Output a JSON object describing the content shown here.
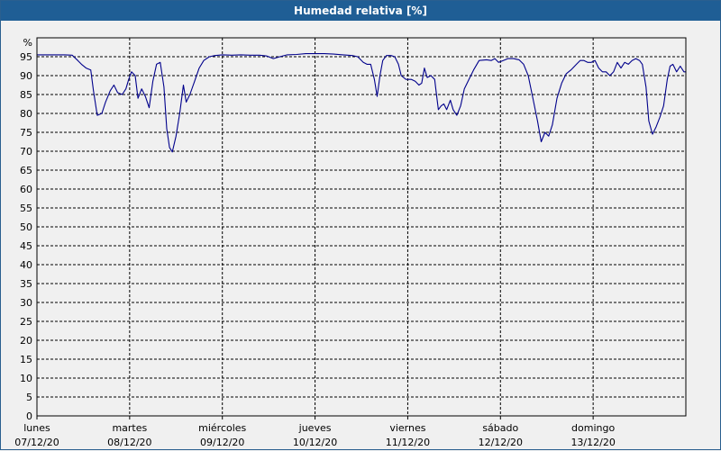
{
  "window": {
    "title": "Humedad relativa [%]"
  },
  "chart_data": {
    "type": "line",
    "title": "Humedad relativa [%]",
    "ylabel": "%",
    "ylim": [
      0,
      100
    ],
    "yticks": [
      0,
      5,
      10,
      15,
      20,
      25,
      30,
      35,
      40,
      45,
      50,
      55,
      60,
      65,
      70,
      75,
      80,
      85,
      90,
      95
    ],
    "xlim": [
      0,
      7
    ],
    "x_unit": "days since 07/12/20 00:00",
    "grid": true,
    "legend": "none",
    "line_color": "#00008b",
    "day_ticks": [
      {
        "day": "lunes",
        "date": "07/12/20"
      },
      {
        "day": "martes",
        "date": "08/12/20"
      },
      {
        "day": "miércoles",
        "date": "09/12/20"
      },
      {
        "day": "jueves",
        "date": "10/12/20"
      },
      {
        "day": "viernes",
        "date": "11/12/20"
      },
      {
        "day": "sábado",
        "date": "12/12/20"
      },
      {
        "day": "domingo",
        "date": "13/12/20"
      }
    ],
    "series": [
      {
        "name": "Humedad relativa",
        "points": [
          [
            0.0,
            95.5
          ],
          [
            0.1,
            95.5
          ],
          [
            0.2,
            95.5
          ],
          [
            0.3,
            95.5
          ],
          [
            0.38,
            95.4
          ],
          [
            0.44,
            94.0
          ],
          [
            0.48,
            93.0
          ],
          [
            0.53,
            92.0
          ],
          [
            0.58,
            91.5
          ],
          [
            0.61,
            86.0
          ],
          [
            0.65,
            79.5
          ],
          [
            0.7,
            80.0
          ],
          [
            0.74,
            83.0
          ],
          [
            0.79,
            86.0
          ],
          [
            0.83,
            87.5
          ],
          [
            0.87,
            85.5
          ],
          [
            0.92,
            85.0
          ],
          [
            0.96,
            86.5
          ],
          [
            0.99,
            89.0
          ],
          [
            1.02,
            91.0
          ],
          [
            1.06,
            90.0
          ],
          [
            1.09,
            84.0
          ],
          [
            1.13,
            86.5
          ],
          [
            1.17,
            84.5
          ],
          [
            1.21,
            81.5
          ],
          [
            1.25,
            88.5
          ],
          [
            1.29,
            93.0
          ],
          [
            1.33,
            93.5
          ],
          [
            1.37,
            87.0
          ],
          [
            1.4,
            76.0
          ],
          [
            1.43,
            71.0
          ],
          [
            1.46,
            69.8
          ],
          [
            1.5,
            74.0
          ],
          [
            1.54,
            80.0
          ],
          [
            1.58,
            87.5
          ],
          [
            1.61,
            83.0
          ],
          [
            1.65,
            85.0
          ],
          [
            1.7,
            88.5
          ],
          [
            1.75,
            92.0
          ],
          [
            1.8,
            94.0
          ],
          [
            1.86,
            95.0
          ],
          [
            1.92,
            95.3
          ],
          [
            2.0,
            95.5
          ],
          [
            2.1,
            95.4
          ],
          [
            2.2,
            95.5
          ],
          [
            2.3,
            95.4
          ],
          [
            2.4,
            95.4
          ],
          [
            2.48,
            95.2
          ],
          [
            2.55,
            94.5
          ],
          [
            2.62,
            95.0
          ],
          [
            2.7,
            95.5
          ],
          [
            2.8,
            95.6
          ],
          [
            2.9,
            95.8
          ],
          [
            3.0,
            95.8
          ],
          [
            3.1,
            95.8
          ],
          [
            3.2,
            95.7
          ],
          [
            3.3,
            95.5
          ],
          [
            3.4,
            95.3
          ],
          [
            3.46,
            95.0
          ],
          [
            3.52,
            93.5
          ],
          [
            3.56,
            93.0
          ],
          [
            3.6,
            93.0
          ],
          [
            3.64,
            89.0
          ],
          [
            3.67,
            84.5
          ],
          [
            3.7,
            90.0
          ],
          [
            3.73,
            94.0
          ],
          [
            3.77,
            95.3
          ],
          [
            3.82,
            95.3
          ],
          [
            3.86,
            95.0
          ],
          [
            3.9,
            93.0
          ],
          [
            3.93,
            90.0
          ],
          [
            3.98,
            89.0
          ],
          [
            4.04,
            89.0
          ],
          [
            4.08,
            88.5
          ],
          [
            4.12,
            87.5
          ],
          [
            4.15,
            88.0
          ],
          [
            4.18,
            92.0
          ],
          [
            4.21,
            89.5
          ],
          [
            4.25,
            90.0
          ],
          [
            4.29,
            89.0
          ],
          [
            4.31,
            85.0
          ],
          [
            4.33,
            81.0
          ],
          [
            4.36,
            82.0
          ],
          [
            4.39,
            82.5
          ],
          [
            4.42,
            81.0
          ],
          [
            4.46,
            83.5
          ],
          [
            4.49,
            81.0
          ],
          [
            4.53,
            79.5
          ],
          [
            4.57,
            82.0
          ],
          [
            4.61,
            86.5
          ],
          [
            4.66,
            89.0
          ],
          [
            4.71,
            91.5
          ],
          [
            4.77,
            94.0
          ],
          [
            4.85,
            94.2
          ],
          [
            4.9,
            94.0
          ],
          [
            4.94,
            94.5
          ],
          [
            4.98,
            93.5
          ],
          [
            5.03,
            94.0
          ],
          [
            5.08,
            94.5
          ],
          [
            5.14,
            94.5
          ],
          [
            5.2,
            94.2
          ],
          [
            5.25,
            93.0
          ],
          [
            5.3,
            90.0
          ],
          [
            5.35,
            84.0
          ],
          [
            5.4,
            78.0
          ],
          [
            5.44,
            72.5
          ],
          [
            5.48,
            75.0
          ],
          [
            5.52,
            74.0
          ],
          [
            5.56,
            77.0
          ],
          [
            5.61,
            84.0
          ],
          [
            5.66,
            88.0
          ],
          [
            5.71,
            90.5
          ],
          [
            5.76,
            91.5
          ],
          [
            5.82,
            93.0
          ],
          [
            5.86,
            94.0
          ],
          [
            5.9,
            94.0
          ],
          [
            5.94,
            93.5
          ],
          [
            5.98,
            93.5
          ],
          [
            6.02,
            94.0
          ],
          [
            6.06,
            92.0
          ],
          [
            6.1,
            91.0
          ],
          [
            6.14,
            91.0
          ],
          [
            6.18,
            90.0
          ],
          [
            6.22,
            91.0
          ],
          [
            6.26,
            93.5
          ],
          [
            6.3,
            92.0
          ],
          [
            6.34,
            93.5
          ],
          [
            6.38,
            93.0
          ],
          [
            6.42,
            94.0
          ],
          [
            6.46,
            94.5
          ],
          [
            6.5,
            94.0
          ],
          [
            6.53,
            93.0
          ],
          [
            6.57,
            87.0
          ],
          [
            6.6,
            78.0
          ],
          [
            6.64,
            74.5
          ],
          [
            6.68,
            76.5
          ],
          [
            6.72,
            79.0
          ],
          [
            6.76,
            82.0
          ],
          [
            6.8,
            89.0
          ],
          [
            6.83,
            92.5
          ],
          [
            6.86,
            93.0
          ],
          [
            6.9,
            91.0
          ],
          [
            6.94,
            92.5
          ],
          [
            6.98,
            91.0
          ],
          [
            7.0,
            91.0
          ]
        ]
      }
    ]
  }
}
